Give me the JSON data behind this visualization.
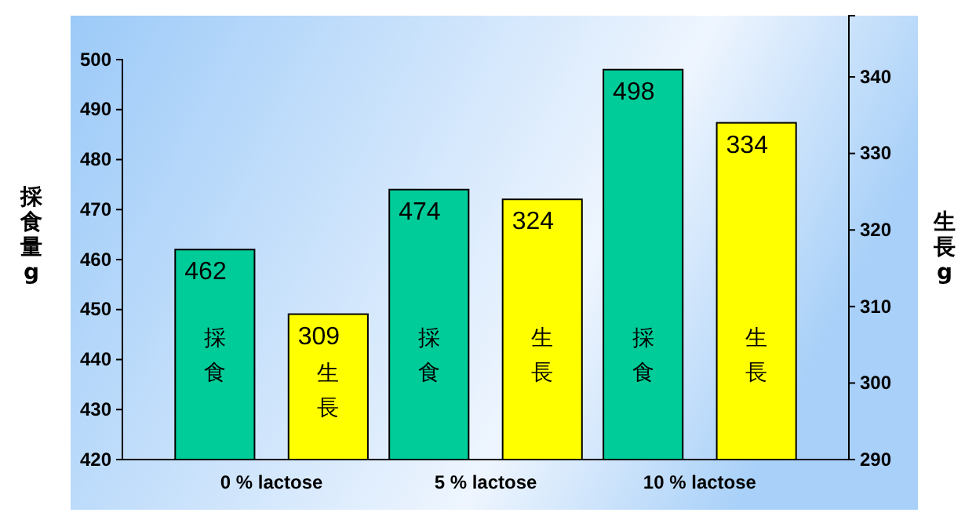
{
  "chart_data": {
    "type": "bar",
    "categories": [
      "0 % lactose",
      "5 % lactose",
      "10 % lactose"
    ],
    "series": [
      {
        "name": "採食",
        "color": "#00cc99",
        "values": [
          462,
          474,
          498
        ]
      },
      {
        "name": "生長",
        "color": "#ffff00",
        "values": [
          309,
          324,
          334
        ],
        "axis": "y2"
      }
    ],
    "ylabel": "採食量g",
    "y2label": "生長g",
    "ylim": [
      420,
      500
    ],
    "yticks": [
      420,
      430,
      440,
      450,
      460,
      470,
      480,
      490,
      500
    ],
    "y2lim": [
      290,
      348
    ],
    "y2ticks": [
      290,
      300,
      310,
      320,
      330,
      340
    ],
    "data_labels": true
  }
}
